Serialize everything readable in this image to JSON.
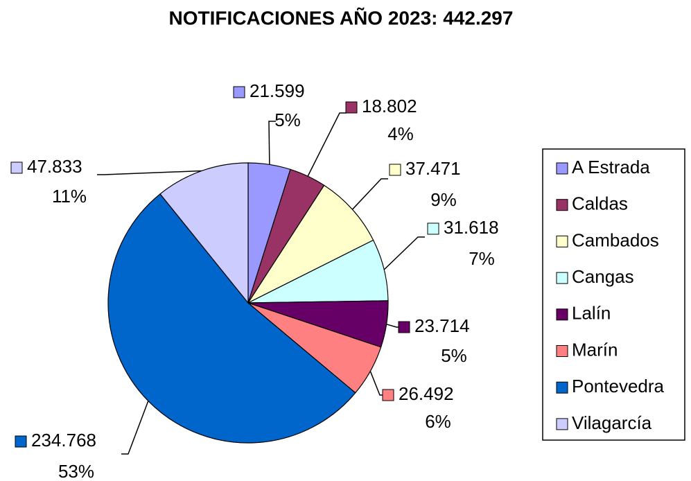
{
  "chart_data": {
    "type": "pie",
    "title": "NOTIFICACIONES AÑO 2023: 442.297",
    "categories": [
      "A Estrada",
      "Caldas",
      "Cambados",
      "Cangas",
      "Lalín",
      "Marín",
      "Pontevedra",
      "Vilagarcía"
    ],
    "values": [
      21599,
      18802,
      37471,
      31618,
      23714,
      26492,
      234768,
      47833
    ],
    "value_labels": [
      "21.599",
      "18.802",
      "37.471",
      "31.618",
      "23.714",
      "26.492",
      "234.768",
      "47.833"
    ],
    "percent_labels": [
      "5%",
      "4%",
      "9%",
      "7%",
      "5%",
      "6%",
      "53%",
      "11%"
    ],
    "colors": [
      "#9999ff",
      "#993366",
      "#ffffcc",
      "#ccffff",
      "#660066",
      "#ff8080",
      "#0066cc",
      "#ccccff"
    ],
    "legend": "right"
  }
}
